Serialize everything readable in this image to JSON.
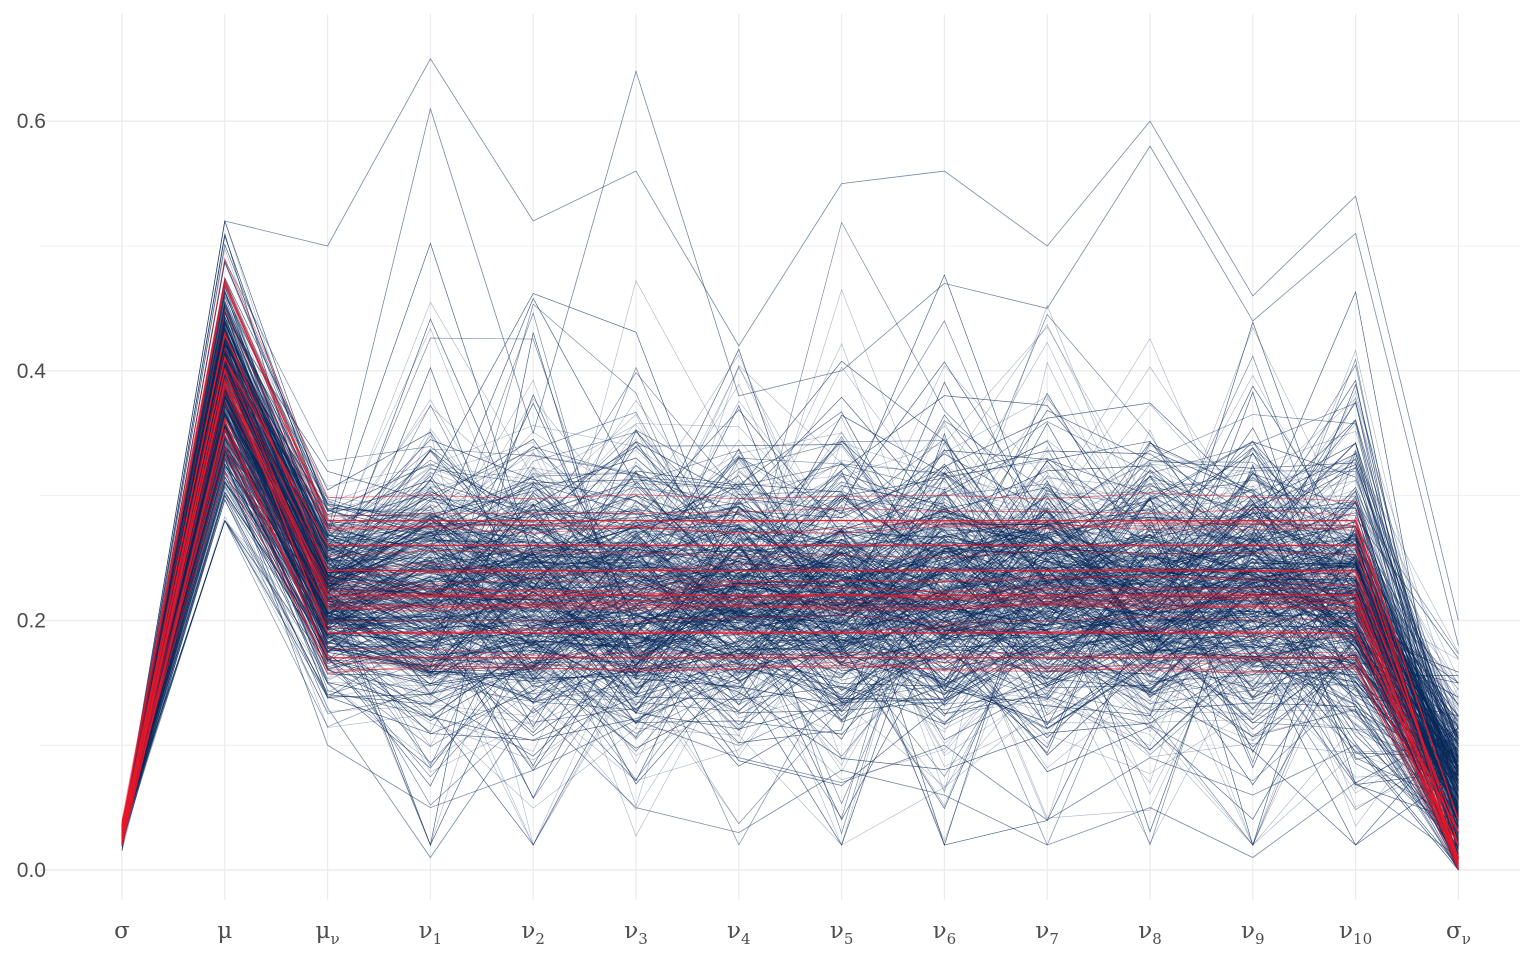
{
  "chart_data": {
    "type": "line",
    "title": "",
    "xlabel": "",
    "ylabel": "",
    "ylim": [
      -0.03,
      0.67
    ],
    "y_ticks": [
      "0.0",
      "0.2",
      "0.4",
      "0.6"
    ],
    "grid": true,
    "legend": "none",
    "categories": [
      {
        "base": "σ",
        "sub": ""
      },
      {
        "base": "μ",
        "sub": ""
      },
      {
        "base": "μ",
        "sub": "ν"
      },
      {
        "base": "ν",
        "sub": "1"
      },
      {
        "base": "ν",
        "sub": "2"
      },
      {
        "base": "ν",
        "sub": "3"
      },
      {
        "base": "ν",
        "sub": "4"
      },
      {
        "base": "ν",
        "sub": "5"
      },
      {
        "base": "ν",
        "sub": "6"
      },
      {
        "base": "ν",
        "sub": "7"
      },
      {
        "base": "ν",
        "sub": "8"
      },
      {
        "base": "ν",
        "sub": "9"
      },
      {
        "base": "ν",
        "sub": "10"
      },
      {
        "base": "σ",
        "sub": "ν"
      }
    ],
    "colors": {
      "draws": "#0b2a5b",
      "highlight": "#e8182a",
      "grid": "#ebebeb"
    },
    "series": [
      {
        "values": [
          0.025,
          0.4,
          0.19,
          0.19,
          0.19,
          0.19,
          0.19,
          0.19,
          0.19,
          0.19,
          0.19,
          0.19,
          0.19,
          0.03
        ]
      },
      {
        "values": [
          0.03,
          0.43,
          0.24,
          0.24,
          0.24,
          0.24,
          0.24,
          0.24,
          0.24,
          0.24,
          0.24,
          0.24,
          0.24,
          0.03
        ]
      },
      {
        "values": [
          0.02,
          0.36,
          0.17,
          0.17,
          0.17,
          0.17,
          0.17,
          0.17,
          0.17,
          0.17,
          0.17,
          0.17,
          0.17,
          0.02
        ]
      },
      {
        "values": [
          0.035,
          0.47,
          0.28,
          0.28,
          0.28,
          0.28,
          0.28,
          0.28,
          0.28,
          0.28,
          0.28,
          0.28,
          0.28,
          0.04
        ]
      },
      {
        "values": [
          0.028,
          0.39,
          0.22,
          0.22,
          0.22,
          0.22,
          0.22,
          0.22,
          0.22,
          0.22,
          0.22,
          0.22,
          0.22,
          0.01
        ]
      },
      {
        "values": [
          0.032,
          0.41,
          0.26,
          0.26,
          0.26,
          0.26,
          0.26,
          0.26,
          0.26,
          0.26,
          0.26,
          0.26,
          0.26,
          0.02
        ]
      },
      {
        "values": [
          0.03,
          0.52,
          0.5,
          0.65,
          0.52,
          0.56,
          0.42,
          0.55,
          0.56,
          0.5,
          0.6,
          0.46,
          0.54,
          0.2
        ]
      },
      {
        "values": [
          0.025,
          0.45,
          0.27,
          0.61,
          0.35,
          0.64,
          0.38,
          0.4,
          0.47,
          0.45,
          0.58,
          0.44,
          0.51,
          0.18
        ]
      },
      {
        "values": [
          0.03,
          0.32,
          0.13,
          0.01,
          0.13,
          0.05,
          0.03,
          0.08,
          0.06,
          0.02,
          0.05,
          0.01,
          0.07,
          0.01
        ]
      },
      {
        "values": [
          0.025,
          0.33,
          0.1,
          0.05,
          0.08,
          0.12,
          0.09,
          0.07,
          0.1,
          0.04,
          0.09,
          0.06,
          0.1,
          0.02
        ]
      }
    ]
  }
}
